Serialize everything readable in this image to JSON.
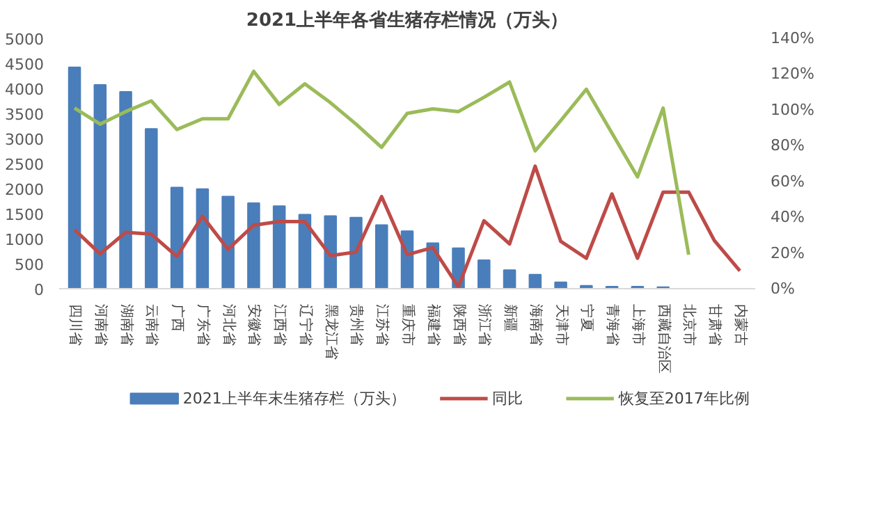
{
  "chart_data": {
    "type": "bar",
    "title": "2021上半年各省生猪存栏情况（万头）",
    "categories": [
      "四川省",
      "河南省",
      "湖南省",
      "云南省",
      "广西",
      "广东省",
      "河北省",
      "安徽省",
      "江西省",
      "辽宁省",
      "黑龙江省",
      "贵州省",
      "江苏省",
      "重庆市",
      "福建省",
      "陕西省",
      "浙江省",
      "新疆",
      "海南省",
      "天津市",
      "宁夏",
      "青海省",
      "上海市",
      "西藏自治区",
      "北京市",
      "甘肃省",
      "内蒙古"
    ],
    "series": [
      {
        "name": "2021上半年末生猪存栏（万头）",
        "color": "#4a7ebb",
        "values": [
          4420,
          4070,
          3930,
          3190,
          2020,
          1990,
          1840,
          1710,
          1650,
          1480,
          1450,
          1420,
          1270,
          1150,
          910,
          810,
          570,
          370,
          280,
          130,
          60,
          40,
          40,
          30,
          null,
          null,
          null
        ]
      },
      {
        "name": "同比",
        "type": "line",
        "axis": "y2",
        "color": "#be4b48",
        "values": [
          33,
          19.5,
          31.5,
          30.5,
          18,
          40.5,
          22,
          35.5,
          37.5,
          37.5,
          18.5,
          20.5,
          51.5,
          19,
          23,
          1,
          38,
          25,
          68.5,
          26.5,
          17,
          53,
          17,
          54,
          54,
          27,
          10
        ]
      },
      {
        "name": "恢复至2017年比例",
        "type": "line",
        "axis": "y2",
        "color": "#9bbb59",
        "values": [
          101,
          92,
          99,
          105,
          89,
          95,
          95,
          121.5,
          103,
          114.5,
          104,
          92,
          79,
          98,
          100.5,
          99,
          107,
          115.5,
          77,
          94,
          111.5,
          87,
          62.5,
          101,
          19,
          null,
          null
        ]
      }
    ],
    "ylim": [
      0,
      5000
    ],
    "yticks": [
      0,
      500,
      1000,
      1500,
      2000,
      2500,
      3000,
      3500,
      4000,
      4500,
      5000
    ],
    "y2lim": [
      0,
      140
    ],
    "y2ticks": [
      {
        "value": 0,
        "label": "0%"
      },
      {
        "value": 20,
        "label": "20%"
      },
      {
        "value": 40,
        "label": "40%"
      },
      {
        "value": 60,
        "label": "60%"
      },
      {
        "value": 80,
        "label": "80%"
      },
      {
        "value": 100,
        "label": "100%"
      },
      {
        "value": 120,
        "label": "120%"
      },
      {
        "value": 140,
        "label": "140%"
      }
    ],
    "grid": false,
    "legend": "bottom",
    "marker": "none",
    "line_style": "solid"
  }
}
